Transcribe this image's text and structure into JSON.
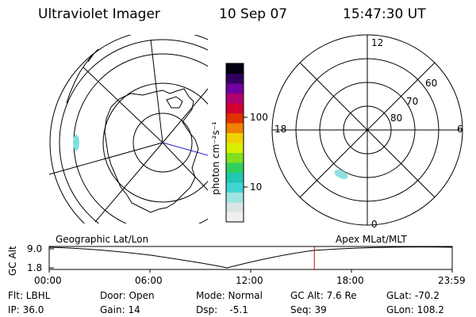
{
  "header": {
    "instrument": "Ultraviolet Imager",
    "date": "10 Sep 07",
    "time": "15:47:30 UT"
  },
  "left_map": {
    "label": "Geographic Lat/Lon"
  },
  "right_map": {
    "label": "Apex MLat/MLT",
    "mlt_labels": {
      "top": "12",
      "left": "18",
      "right": "6",
      "bottom": "0"
    },
    "lat_labels": [
      "60",
      "70",
      "80"
    ]
  },
  "colorbar": {
    "unit_label": "photon cm⁻²s⁻¹",
    "ticks": [
      "100",
      "10"
    ],
    "colors": [
      "#f0f0f0",
      "#d8e6e6",
      "#9fe3e0",
      "#40d4d4",
      "#20c8b0",
      "#30d060",
      "#80e020",
      "#d8f000",
      "#f0d000",
      "#f08000",
      "#e03000",
      "#d00030",
      "#b00070",
      "#7000a0",
      "#300060",
      "#000010"
    ]
  },
  "altitude_strip": {
    "ylabel": "GC Alt",
    "ytick_top": "9.0",
    "ytick_bottom": "1.8",
    "x_ticks": [
      "00:00",
      "06:00",
      "12:00",
      "18:00",
      "23:59"
    ],
    "current_time_hours": 15.79
  },
  "info": {
    "row1": [
      {
        "key": "filter",
        "text": "Flt: LBHL"
      },
      {
        "key": "door",
        "text": "Door: Open"
      },
      {
        "key": "mode",
        "text": "Mode: Normal"
      },
      {
        "key": "gcalt",
        "text": "GC Alt: 7.6 Re"
      },
      {
        "key": "glat",
        "text": "GLat: -70.2"
      }
    ],
    "row2": [
      {
        "key": "ip",
        "text": "IP: 36.0"
      },
      {
        "key": "gain",
        "text": "Gain: 14"
      },
      {
        "key": "dsp",
        "text": "Dsp:    -5.1"
      },
      {
        "key": "seq",
        "text": "Seq: 39"
      },
      {
        "key": "glon",
        "text": "GLon: 108.2"
      }
    ]
  }
}
